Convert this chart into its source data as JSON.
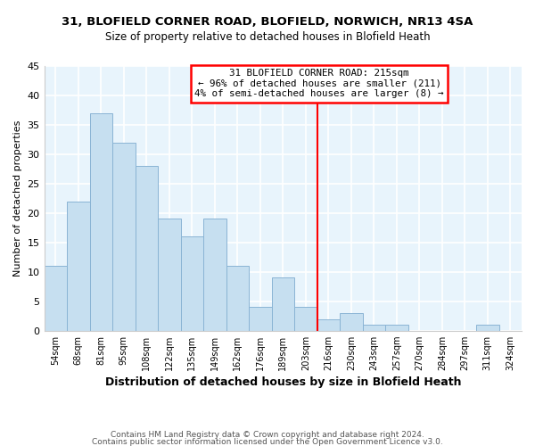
{
  "title": "31, BLOFIELD CORNER ROAD, BLOFIELD, NORWICH, NR13 4SA",
  "subtitle": "Size of property relative to detached houses in Blofield Heath",
  "xlabel": "Distribution of detached houses by size in Blofield Heath",
  "ylabel": "Number of detached properties",
  "footer_line1": "Contains HM Land Registry data © Crown copyright and database right 2024.",
  "footer_line2": "Contains public sector information licensed under the Open Government Licence v3.0.",
  "bin_labels": [
    "54sqm",
    "68sqm",
    "81sqm",
    "95sqm",
    "108sqm",
    "122sqm",
    "135sqm",
    "149sqm",
    "162sqm",
    "176sqm",
    "189sqm",
    "203sqm",
    "216sqm",
    "230sqm",
    "243sqm",
    "257sqm",
    "270sqm",
    "284sqm",
    "297sqm",
    "311sqm",
    "324sqm"
  ],
  "bar_values": [
    11,
    22,
    37,
    32,
    28,
    19,
    16,
    19,
    11,
    4,
    9,
    4,
    2,
    3,
    1,
    1,
    0,
    0,
    0,
    1,
    0
  ],
  "bar_color": "#c6dff0",
  "bar_edge_color": "#8ab4d4",
  "vline_x_index": 12,
  "vline_color": "red",
  "annotation_title": "31 BLOFIELD CORNER ROAD: 215sqm",
  "annotation_line1": "← 96% of detached houses are smaller (211)",
  "annotation_line2": "4% of semi-detached houses are larger (8) →",
  "annotation_box_color": "white",
  "annotation_box_edge": "red",
  "ylim": [
    0,
    45
  ],
  "yticks": [
    0,
    5,
    10,
    15,
    20,
    25,
    30,
    35,
    40,
    45
  ],
  "background_color": "#ffffff",
  "plot_bg_color": "#e8f4fc"
}
